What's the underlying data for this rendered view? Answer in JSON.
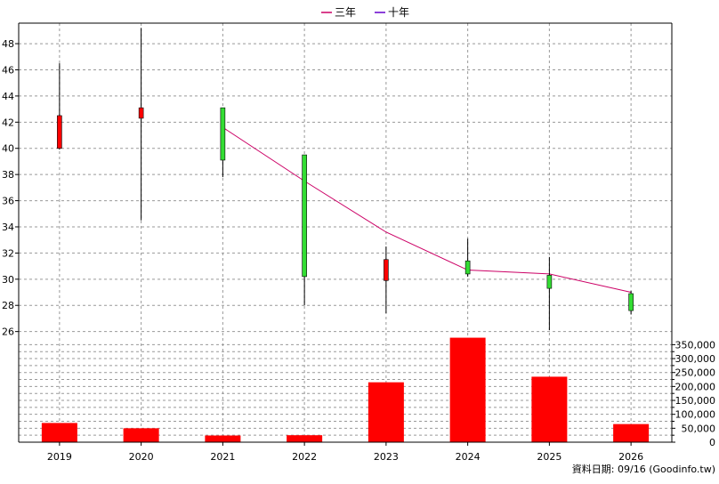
{
  "chart_data": {
    "type": "candlestick",
    "categories": [
      "2019",
      "2020",
      "2021",
      "2022",
      "2023",
      "2024",
      "2025",
      "2026"
    ],
    "legend": {
      "position": "top-center",
      "entries": [
        {
          "label": "三年",
          "color": "#cc0066"
        },
        {
          "label": "十年",
          "color": "#6600cc"
        }
      ]
    },
    "price_axis": {
      "ticks": [
        "48",
        "46",
        "44",
        "42",
        "40",
        "38",
        "36",
        "34",
        "32",
        "30",
        "28",
        "26"
      ],
      "range": [
        25.5,
        49.5
      ]
    },
    "candles": [
      {
        "year": "2019",
        "open": 40.0,
        "close": 42.5,
        "high": 46.5,
        "low": 39.9,
        "color": "red"
      },
      {
        "year": "2020",
        "open": 42.3,
        "close": 43.1,
        "high": 49.2,
        "low": 34.5,
        "color": "red"
      },
      {
        "year": "2021",
        "open": 43.1,
        "close": 39.1,
        "high": 43.1,
        "low": 37.8,
        "color": "green"
      },
      {
        "year": "2022",
        "open": 39.5,
        "close": 30.2,
        "high": 39.5,
        "low": 28.0,
        "color": "green"
      },
      {
        "year": "2023",
        "open": 29.9,
        "close": 31.5,
        "high": 32.5,
        "low": 27.4,
        "color": "red"
      },
      {
        "year": "2024",
        "open": 31.4,
        "close": 30.4,
        "high": 33.1,
        "low": 30.2,
        "color": "green"
      },
      {
        "year": "2025",
        "open": 30.3,
        "close": 29.3,
        "high": 31.7,
        "low": 26.1,
        "color": "green"
      },
      {
        "year": "2026",
        "open": 28.9,
        "close": 27.6,
        "high": 29.1,
        "low": 27.3,
        "color": "green"
      }
    ],
    "three_year_line": {
      "name": "三年",
      "color": "#cc0066",
      "points": [
        {
          "year": "2021",
          "value": 41.6
        },
        {
          "year": "2022",
          "value": 37.5
        },
        {
          "year": "2023",
          "value": 33.6
        },
        {
          "year": "2024",
          "value": 30.7
        },
        {
          "year": "2025",
          "value": 30.4
        },
        {
          "year": "2026",
          "value": 29.0
        }
      ]
    },
    "volume_axis": {
      "ticks": [
        "350,000",
        "300,000",
        "250,000",
        "200,000",
        "150,000",
        "100,000",
        "50,000",
        "0"
      ],
      "range": [
        0,
        380000
      ]
    },
    "volume": [
      {
        "year": "2019",
        "value": 69000
      },
      {
        "year": "2020",
        "value": 50000
      },
      {
        "year": "2021",
        "value": 24000
      },
      {
        "year": "2022",
        "value": 25000
      },
      {
        "year": "2023",
        "value": 215000
      },
      {
        "year": "2024",
        "value": 375000
      },
      {
        "year": "2025",
        "value": 235000
      },
      {
        "year": "2026",
        "value": 65000
      }
    ],
    "colors": {
      "up": "#ff0000",
      "down": "#33dd33",
      "volume_bar": "#ff0000",
      "grid": "#999999",
      "axis": "#000000"
    },
    "grid": true
  },
  "footer": {
    "source_note": "資料日期: 09/16  (Goodinfo.tw)"
  }
}
